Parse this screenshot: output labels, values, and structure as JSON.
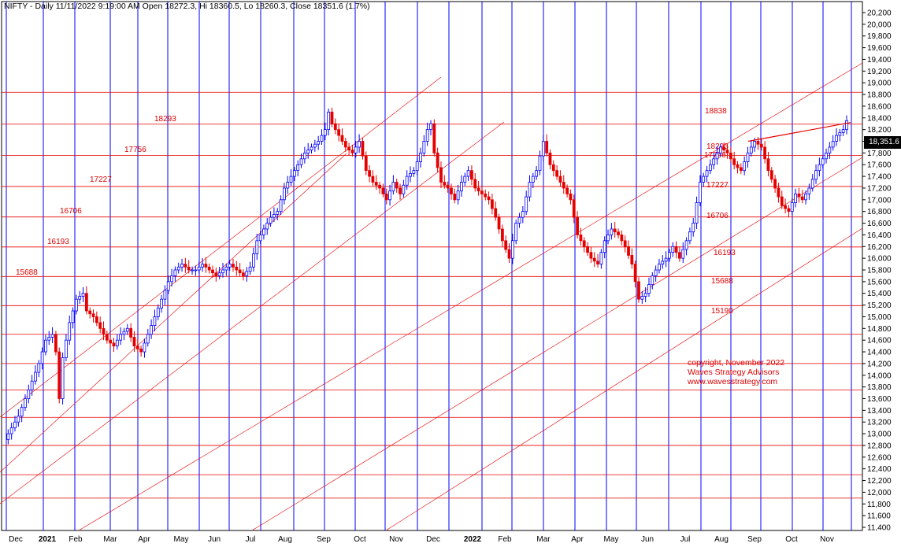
{
  "title": "NIFTY - Daily 11/11/2022 9:19:00 AM Open 18272.3, Hi 18360.5, Lo 18260.3, Close 18351.6 (1.7%)",
  "price_tag": "18,351.6",
  "copyright": {
    "line1": "copyright, November 2022",
    "line2": "Waves Strategy Advisors",
    "line3": "www.wavesstrategy.com"
  },
  "colors": {
    "level_line": "#e60000",
    "month_line": "#0000ff",
    "up_candle": "#0000ff",
    "down_candle": "#e60000",
    "text_red": "#e00000"
  },
  "chart_data": {
    "type": "candlestick",
    "title": "NIFTY - Daily 11/11/2022 9:19:00 AM Open 18272.3, Hi 18360.5, Lo 18260.3, Close 18351.6 (1.7%)",
    "ylim": [
      11400,
      20200
    ],
    "y_ticks": [
      "20,200",
      "20,000",
      "19,800",
      "19,600",
      "19,400",
      "19,200",
      "19,000",
      "18,800",
      "18,600",
      "18,400",
      "18,200",
      "18,000",
      "17,800",
      "17,600",
      "17,400",
      "17,200",
      "17,000",
      "16,800",
      "16,600",
      "16,400",
      "16,200",
      "16,000",
      "15,800",
      "15,600",
      "15,400",
      "15,200",
      "15,000",
      "14,800",
      "14,600",
      "14,400",
      "14,200",
      "14,000",
      "13,800",
      "13,600",
      "13,400",
      "13,200",
      "13,000",
      "12,800",
      "12,600",
      "12,400",
      "12,200",
      "12,000",
      "11,800",
      "11,600",
      "11,400"
    ],
    "x_labels": [
      "Dec",
      "2021",
      "Feb",
      "Mar",
      "Apr",
      "May",
      "Jun",
      "Jul",
      "Aug",
      "Sep",
      "Oct",
      "Nov",
      "Dec",
      "2022",
      "Feb",
      "Mar",
      "Apr",
      "May",
      "Jun",
      "Jul",
      "Aug",
      "Sep",
      "Oct",
      "Nov"
    ],
    "x_bold": [
      "2021",
      "2022"
    ],
    "levels": [
      18838,
      18293,
      17756,
      17227,
      16706,
      16193,
      15688,
      15190,
      14700,
      14200,
      13750,
      13280,
      12800,
      12300,
      11900
    ],
    "level_labels_left": [
      "18293",
      "17756",
      "17227",
      "16706",
      "16193",
      "15688"
    ],
    "level_labels_right": [
      "18838",
      "18293",
      "17756",
      "17227",
      "16706",
      "16193",
      "15688",
      "15190"
    ],
    "price_path": [
      [
        0,
        12900
      ],
      [
        2,
        13100
      ],
      [
        4,
        13300
      ],
      [
        6,
        13600
      ],
      [
        8,
        13900
      ],
      [
        10,
        14200
      ],
      [
        12,
        14600
      ],
      [
        14,
        14700
      ],
      [
        15,
        14400
      ],
      [
        16,
        13600
      ],
      [
        17,
        14300
      ],
      [
        19,
        14900
      ],
      [
        21,
        15300
      ],
      [
        23,
        15400
      ],
      [
        24,
        15100
      ],
      [
        26,
        15000
      ],
      [
        28,
        14800
      ],
      [
        30,
        14600
      ],
      [
        32,
        14500
      ],
      [
        34,
        14700
      ],
      [
        36,
        14800
      ],
      [
        38,
        14500
      ],
      [
        40,
        14400
      ],
      [
        42,
        14700
      ],
      [
        44,
        15000
      ],
      [
        46,
        15300
      ],
      [
        48,
        15600
      ],
      [
        50,
        15800
      ],
      [
        52,
        15900
      ],
      [
        54,
        15800
      ],
      [
        56,
        15800
      ],
      [
        58,
        15900
      ],
      [
        60,
        15800
      ],
      [
        62,
        15700
      ],
      [
        64,
        15800
      ],
      [
        66,
        15900
      ],
      [
        68,
        15800
      ],
      [
        70,
        15700
      ],
      [
        72,
        15850
      ],
      [
        74,
        16300
      ],
      [
        76,
        16500
      ],
      [
        78,
        16700
      ],
      [
        80,
        16800
      ],
      [
        82,
        17200
      ],
      [
        84,
        17400
      ],
      [
        86,
        17600
      ],
      [
        88,
        17800
      ],
      [
        90,
        17900
      ],
      [
        92,
        18000
      ],
      [
        94,
        18200
      ],
      [
        95,
        18500
      ],
      [
        96,
        18300
      ],
      [
        98,
        18100
      ],
      [
        100,
        17900
      ],
      [
        102,
        17800
      ],
      [
        104,
        18000
      ],
      [
        106,
        17500
      ],
      [
        108,
        17300
      ],
      [
        110,
        17200
      ],
      [
        112,
        17000
      ],
      [
        114,
        17300
      ],
      [
        116,
        17100
      ],
      [
        118,
        17400
      ],
      [
        120,
        17500
      ],
      [
        122,
        17800
      ],
      [
        124,
        18200
      ],
      [
        125,
        18300
      ],
      [
        126,
        17800
      ],
      [
        128,
        17300
      ],
      [
        130,
        17200
      ],
      [
        132,
        17000
      ],
      [
        134,
        17300
      ],
      [
        136,
        17500
      ],
      [
        138,
        17200
      ],
      [
        140,
        17100
      ],
      [
        142,
        17000
      ],
      [
        144,
        16700
      ],
      [
        146,
        16300
      ],
      [
        148,
        16000
      ],
      [
        150,
        16600
      ],
      [
        152,
        16800
      ],
      [
        154,
        17300
      ],
      [
        156,
        17500
      ],
      [
        158,
        18000
      ],
      [
        160,
        17600
      ],
      [
        162,
        17400
      ],
      [
        164,
        17200
      ],
      [
        166,
        17000
      ],
      [
        168,
        16400
      ],
      [
        170,
        16200
      ],
      [
        172,
        16000
      ],
      [
        174,
        15900
      ],
      [
        176,
        16300
      ],
      [
        178,
        16500
      ],
      [
        180,
        16400
      ],
      [
        182,
        16200
      ],
      [
        184,
        15900
      ],
      [
        186,
        15300
      ],
      [
        188,
        15400
      ],
      [
        190,
        15700
      ],
      [
        192,
        15900
      ],
      [
        194,
        16000
      ],
      [
        196,
        16200
      ],
      [
        198,
        16000
      ],
      [
        200,
        16300
      ],
      [
        202,
        16600
      ],
      [
        204,
        17300
      ],
      [
        206,
        17500
      ],
      [
        208,
        17700
      ],
      [
        210,
        17900
      ],
      [
        212,
        17800
      ],
      [
        214,
        17600
      ],
      [
        216,
        17500
      ],
      [
        218,
        17800
      ],
      [
        220,
        18000
      ],
      [
        222,
        17900
      ],
      [
        224,
        17500
      ],
      [
        226,
        17200
      ],
      [
        228,
        16900
      ],
      [
        230,
        16800
      ],
      [
        232,
        17100
      ],
      [
        234,
        17000
      ],
      [
        236,
        17200
      ],
      [
        238,
        17500
      ],
      [
        240,
        17700
      ],
      [
        242,
        17900
      ],
      [
        244,
        18100
      ],
      [
        246,
        18200
      ],
      [
        247,
        18352
      ]
    ]
  }
}
